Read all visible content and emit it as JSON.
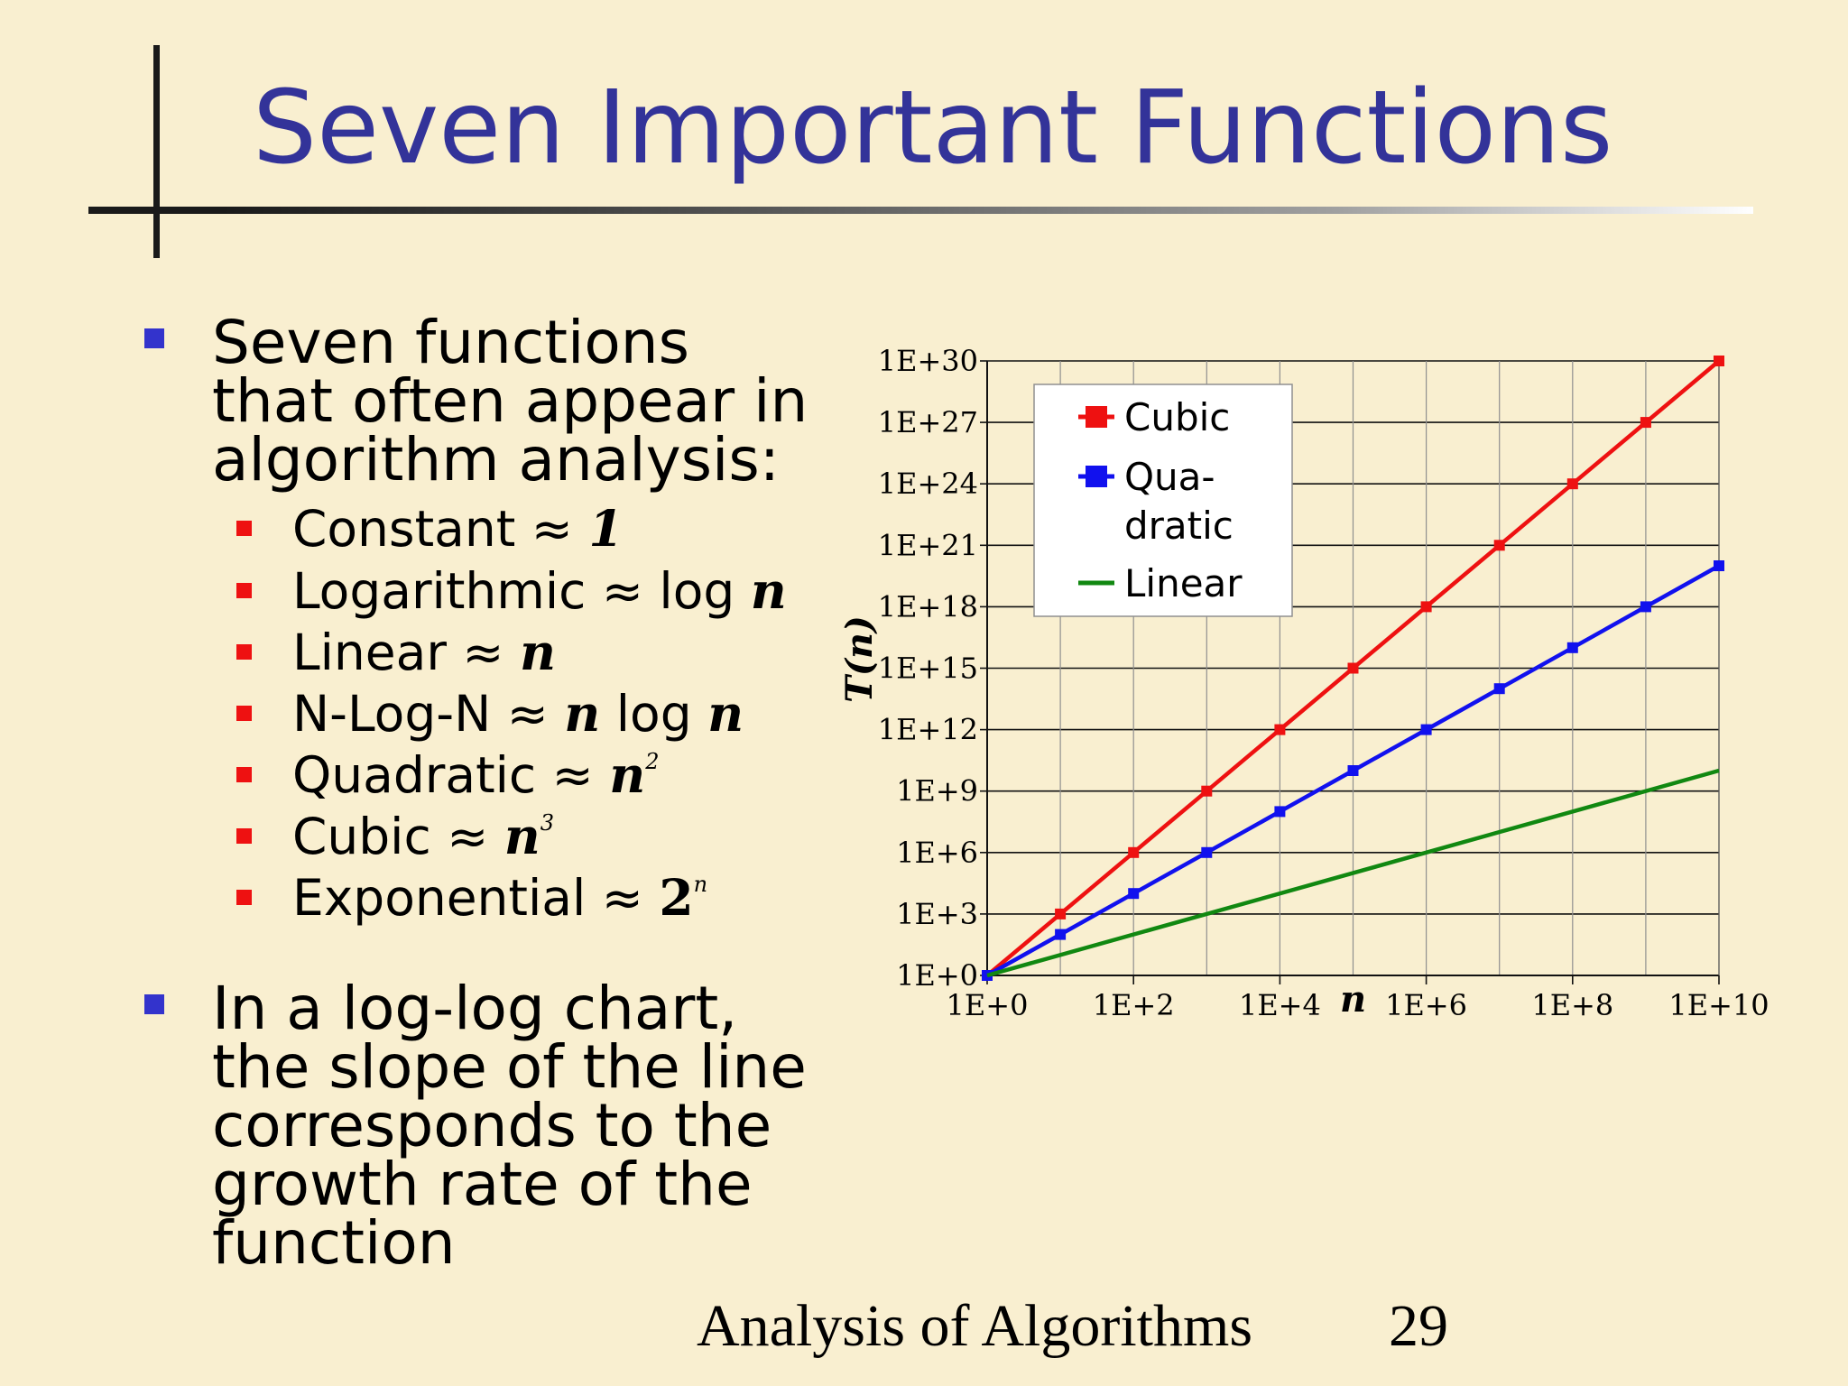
{
  "title": "Seven Important Functions",
  "bullets": {
    "intro": [
      "Seven functions",
      "that often appear in",
      "algorithm analysis:"
    ],
    "functions": [
      {
        "name": "Constant",
        "approx": "≈",
        "expr": "1"
      },
      {
        "name": "Logarithmic",
        "approx": "≈",
        "expr_a": "log",
        "expr_b": "n"
      },
      {
        "name": "Linear",
        "approx": "≈",
        "expr": "n"
      },
      {
        "name": "N-Log-N",
        "approx": "≈",
        "expr_a": "n",
        "expr_b": "log",
        "expr_c": "n"
      },
      {
        "name": "Quadratic",
        "approx": "≈",
        "base": "n",
        "exp": "2"
      },
      {
        "name": "Cubic",
        "approx": "≈",
        "base": "n",
        "exp": "3"
      },
      {
        "name": "Exponential",
        "approx": "≈",
        "base": "2",
        "exp": "n"
      }
    ],
    "loglog": [
      "In a log-log chart,",
      "the slope of the line",
      "corresponds to the",
      "growth rate of the",
      "function"
    ]
  },
  "footer": {
    "text": "Analysis of Algorithms",
    "page": "29"
  },
  "colors": {
    "title": "#333399",
    "background": "#f9efd0",
    "bullet_level1": "#3333cc",
    "bullet_level2": "#ee1111"
  },
  "chart_data": {
    "type": "line",
    "xscale": "log",
    "yscale": "log",
    "xlabel": "n",
    "ylabel": "T(n)",
    "xlim": [
      1,
      10000000000.0
    ],
    "ylim": [
      1,
      1e+30
    ],
    "x_tick_labels": [
      "1E+0",
      "1E+2",
      "1E+4",
      "1E+6",
      "1E+8",
      "1E+10"
    ],
    "y_tick_labels": [
      "1E+0",
      "1E+3",
      "1E+6",
      "1E+9",
      "1E+12",
      "1E+15",
      "1E+18",
      "1E+21",
      "1E+24",
      "1E+27",
      "1E+30"
    ],
    "grid": true,
    "legend_position": "top-left",
    "series": [
      {
        "name": "Cubic",
        "color": "#ee1111",
        "markers": true,
        "x": [
          1,
          10,
          100,
          1000,
          10000,
          100000,
          1000000,
          10000000,
          100000000,
          1000000000,
          10000000000
        ],
        "y": [
          1,
          1000.0,
          1000000.0,
          1000000000.0,
          1000000000000.0,
          1000000000000000.0,
          1e+18,
          1e+21,
          1e+24,
          1e+27,
          1e+30
        ]
      },
      {
        "name": "Quadratic",
        "legend_label": [
          "Qua-",
          "dratic"
        ],
        "color": "#1111ee",
        "markers": true,
        "x": [
          1,
          10,
          100,
          1000,
          10000,
          100000,
          1000000,
          10000000,
          100000000,
          1000000000,
          10000000000
        ],
        "y": [
          1,
          100.0,
          10000.0,
          1000000.0,
          100000000.0,
          10000000000.0,
          1000000000000.0,
          100000000000000.0,
          1e+16,
          1e+18,
          1e+20
        ]
      },
      {
        "name": "Linear",
        "color": "#118811",
        "markers": false,
        "x": [
          1,
          10000000000
        ],
        "y": [
          1,
          10000000000.0
        ]
      }
    ]
  }
}
